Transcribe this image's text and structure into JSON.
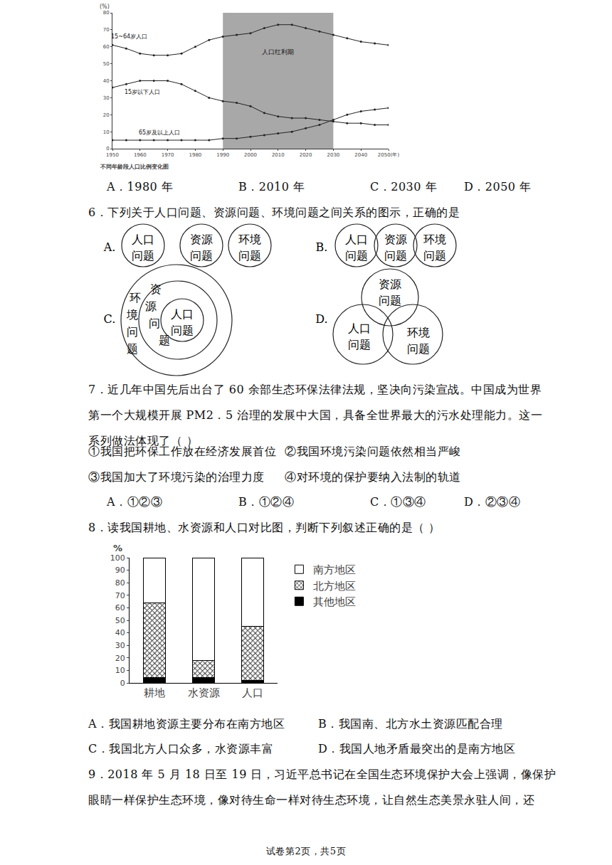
{
  "chart_data": [
    {
      "type": "line",
      "title": "不同年龄段人口比例变化图",
      "y_label": "(%)",
      "x": [
        1950,
        1955,
        1960,
        1965,
        1970,
        1975,
        1980,
        1985,
        1990,
        1995,
        2000,
        2005,
        2010,
        2015,
        2020,
        2025,
        2030,
        2035,
        2040,
        2045,
        2050
      ],
      "series": [
        {
          "name": "15~64岁人口",
          "color": "#222222",
          "values": [
            61,
            59,
            56,
            55,
            55,
            56,
            60,
            64,
            66,
            67,
            68,
            71,
            73,
            73,
            71,
            69,
            67,
            65,
            63,
            62,
            61
          ]
        },
        {
          "name": "15岁以下人口",
          "color": "#222222",
          "values": [
            36,
            38,
            40,
            40,
            40,
            38,
            34,
            30,
            28,
            27,
            25,
            21,
            19,
            18,
            18,
            17,
            16,
            15,
            15,
            14,
            14
          ]
        },
        {
          "name": "65岁及以上人口",
          "color": "#222222",
          "values": [
            5,
            5,
            5,
            5,
            5,
            5,
            5,
            5,
            6,
            6,
            7,
            8,
            9,
            10,
            12,
            14,
            17,
            20,
            22,
            23,
            24
          ]
        }
      ],
      "shaded": {
        "x": [
          1990,
          2030
        ],
        "label": "人口红利期",
        "color": "#a8a8a8"
      },
      "xlim": [
        1950,
        2050
      ],
      "xticks": [
        1950,
        1960,
        1970,
        1980,
        1990,
        2000,
        2010,
        2020,
        2030,
        2040,
        {
          "value": 2050,
          "label": "2050(年)"
        }
      ],
      "ylim": [
        0,
        80
      ],
      "yticks": [
        0,
        10,
        20,
        30,
        40,
        50,
        60,
        70,
        80
      ],
      "grid": false,
      "marker": "circle"
    },
    {
      "type": "bar",
      "stacked": true,
      "y_label": "%",
      "categories": [
        "耕地",
        "水资源",
        "人口"
      ],
      "series": [
        {
          "name": "其他地区",
          "color": "#000000",
          "values": [
            4,
            4,
            2
          ]
        },
        {
          "name": "北方地区",
          "color": "#666666",
          "values": [
            60,
            14,
            43
          ]
        },
        {
          "name": "南方地区",
          "color": "#ffffff",
          "values": [
            36,
            82,
            55
          ]
        }
      ],
      "ylim": [
        0,
        100
      ],
      "yticks": [
        0,
        10,
        20,
        30,
        40,
        50,
        60,
        70,
        80,
        90,
        100
      ],
      "grid": false,
      "legend": "right"
    }
  ],
  "document": {
    "q5_options": [
      "A．1980 年",
      "B．2010 年",
      "C．2030 年",
      "D．2050 年"
    ],
    "q6": {
      "stem": "6．下列关于人口问题、资源问题、环境问题之间关系的图示，正确的是",
      "letters": [
        "A.",
        "B.",
        "C.",
        "D."
      ],
      "population": [
        "人口",
        "问题"
      ],
      "resource": [
        "资源",
        "问题"
      ],
      "environment": [
        "环境",
        "问题"
      ]
    },
    "q7": {
      "lines": [
        "7．近几年中国先后出台了 60 余部生态环保法律法规，坚决向污染宣战。中国成为世界",
        "第一个大规模开展 PM2．5 治理的发展中大国，具备全世界最大的污水处理能力。这一",
        "系列做法体现了（  ）"
      ],
      "statements": [
        "①我国把环保工作放在经济发展首位",
        "②我国环境污染问题依然相当严峻",
        "③我国加大了环境污染的治理力度",
        "④对环境的保护要纳入法制的轨道"
      ],
      "options": [
        "A．①②③",
        "B．①②④",
        "C．①③④",
        "D．②③④"
      ]
    },
    "q8": {
      "stem": "8．读我国耕地、水资源和人口对比图，判断下列叙述正确的是（  ）",
      "options": [
        "A．我国耕地资源主要分布在南方地区",
        "B．我国南、北方水土资源匹配合理",
        "C．我国北方人口众多，水资源丰富",
        "D．我国人地矛盾最突出的是南方地区"
      ]
    },
    "q9": {
      "lines": [
        "9．2018 年 5 月 18 日至 19 日，习近平总书记在全国生态环境保护大会上强调，像保护",
        "眼睛一样保护生态环境，像对待生命一样对待生态环境，让自然生态美景永驻人间，还"
      ]
    },
    "footer": "试卷第2页，共5页"
  }
}
